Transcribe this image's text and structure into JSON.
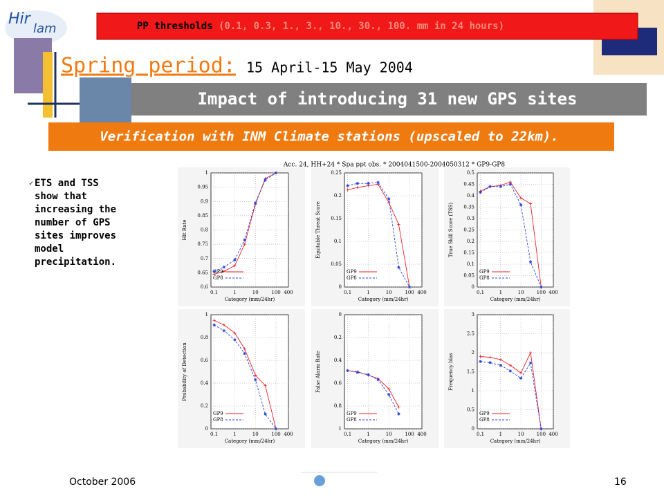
{
  "header": {
    "logo_top": "Hir",
    "logo_bottom": "lam",
    "threshold_label": "PP thresholds",
    "threshold_values": "(0.1, 0.3, 1., 3., 10., 30., 100. mm in 24 hours)",
    "period_label": "Spring period: ",
    "period_dates": "15 April-15 May 2004",
    "banner": "Impact of introducing 31 new GPS sites",
    "subbanner": "Verification with INM Climate stations (upscaled to 22km)."
  },
  "bullet": "ETS and TSS show that increasing the number of GPS sites improves model precipitation.",
  "figure_title": "Acc. 24, HH+24 * Spa ppt obs. * 2004041500-2004050312 * GP9-GP8",
  "footer": {
    "date": "October 2006",
    "page": "16"
  },
  "chart_data": [
    {
      "type": "line",
      "ylabel": "Hit Rate",
      "xlabel": "Category (mm/24hr)",
      "xscale": "log",
      "grid": true,
      "legend": "lower left",
      "x": [
        0.1,
        0.3,
        1,
        3,
        10,
        30,
        100
      ],
      "xlim": [
        0.07,
        400
      ],
      "xticks": [
        0.1,
        1,
        10,
        100,
        400
      ],
      "ylim": [
        0.6,
        1
      ],
      "yticks": [
        0.6,
        0.65,
        0.7,
        0.75,
        0.8,
        0.85,
        0.9,
        0.95,
        1
      ],
      "series": [
        {
          "name": "GP9",
          "color": "#e8202a",
          "values": [
            0.645,
            0.655,
            0.675,
            0.75,
            0.89,
            0.98,
            1.0
          ]
        },
        {
          "name": "GP8",
          "color": "#2040e0",
          "values": [
            0.655,
            0.67,
            0.695,
            0.765,
            0.895,
            0.975,
            1.0
          ]
        }
      ]
    },
    {
      "type": "line",
      "ylabel": "Equitable Threat Score",
      "xlabel": "Category (mm/24hr)",
      "xscale": "log",
      "grid": true,
      "legend": "lower left",
      "x": [
        0.1,
        0.3,
        1,
        3,
        10,
        30,
        100
      ],
      "xlim": [
        0.07,
        400
      ],
      "xticks": [
        0.1,
        1,
        10,
        100,
        400
      ],
      "ylim": [
        0,
        0.25
      ],
      "yticks": [
        0,
        0.05,
        0.1,
        0.15,
        0.2,
        0.25
      ],
      "series": [
        {
          "name": "GP9",
          "color": "#e8202a",
          "values": [
            0.213,
            0.218,
            0.222,
            0.225,
            0.185,
            0.137,
            0.0
          ]
        },
        {
          "name": "GP8",
          "color": "#2040e0",
          "values": [
            0.222,
            0.227,
            0.227,
            0.229,
            0.193,
            0.043,
            0.0
          ]
        }
      ]
    },
    {
      "type": "line",
      "ylabel": "True Skill Score (TSS)",
      "xlabel": "Category (mm/24hr)",
      "xscale": "log",
      "grid": true,
      "legend": "lower left",
      "x": [
        0.1,
        0.3,
        1,
        3,
        10,
        30,
        100
      ],
      "xlim": [
        0.07,
        400
      ],
      "xticks": [
        0.1,
        1,
        10,
        100,
        400
      ],
      "ylim": [
        0,
        0.5
      ],
      "yticks": [
        0,
        0.05,
        0.1,
        0.15,
        0.2,
        0.25,
        0.3,
        0.35,
        0.4,
        0.45,
        0.5
      ],
      "series": [
        {
          "name": "GP9",
          "color": "#e8202a",
          "values": [
            0.42,
            0.44,
            0.445,
            0.46,
            0.39,
            0.365,
            0.0
          ]
        },
        {
          "name": "GP8",
          "color": "#2040e0",
          "values": [
            0.415,
            0.44,
            0.44,
            0.45,
            0.36,
            0.11,
            0.0
          ]
        }
      ]
    },
    {
      "type": "line",
      "ylabel": "Probability of Detection",
      "xlabel": "Category (mm/24hr)",
      "xscale": "log",
      "grid": true,
      "legend": "lower left",
      "x": [
        0.1,
        0.3,
        1,
        3,
        10,
        30,
        100
      ],
      "xlim": [
        0.07,
        400
      ],
      "xticks": [
        0.1,
        1,
        10,
        100,
        400
      ],
      "ylim": [
        0,
        1
      ],
      "yticks": [
        0,
        0.2,
        0.4,
        0.6,
        0.8,
        1
      ],
      "series": [
        {
          "name": "GP9",
          "color": "#e8202a",
          "values": [
            0.95,
            0.91,
            0.84,
            0.7,
            0.47,
            0.38,
            0.0
          ]
        },
        {
          "name": "GP8",
          "color": "#2040e0",
          "values": [
            0.91,
            0.86,
            0.78,
            0.66,
            0.43,
            0.13,
            0.0
          ]
        }
      ]
    },
    {
      "type": "line",
      "ylabel": "False Alarm Rate",
      "xlabel": "Category (mm/24hr)",
      "xscale": "log",
      "grid": true,
      "legend": "lower left",
      "x": [
        0.1,
        0.3,
        1,
        3,
        10,
        30,
        100
      ],
      "xlim": [
        0.07,
        400
      ],
      "xticks": [
        0.1,
        1,
        10,
        100,
        400
      ],
      "ylim": [
        1,
        0
      ],
      "yticks": [
        0,
        0.2,
        0.4,
        0.6,
        0.8,
        1
      ],
      "series": [
        {
          "name": "GP9",
          "color": "#e8202a",
          "values": [
            0.49,
            0.5,
            0.53,
            0.56,
            0.65,
            0.81,
            null
          ]
        },
        {
          "name": "GP8",
          "color": "#2040e0",
          "values": [
            0.49,
            0.505,
            0.525,
            0.57,
            0.7,
            0.87,
            null
          ]
        }
      ]
    },
    {
      "type": "line",
      "ylabel": "Frequency bias",
      "xlabel": "Category (mm/24hr)",
      "xscale": "log",
      "grid": true,
      "legend": "lower left",
      "x": [
        0.1,
        0.3,
        1,
        3,
        10,
        30,
        100
      ],
      "xlim": [
        0.07,
        400
      ],
      "xticks": [
        0.1,
        1,
        10,
        100,
        400
      ],
      "ylim": [
        0,
        3
      ],
      "yticks": [
        0,
        0.5,
        1,
        1.5,
        2,
        2.5,
        3
      ],
      "series": [
        {
          "name": "GP9",
          "color": "#e8202a",
          "values": [
            1.9,
            1.88,
            1.82,
            1.67,
            1.47,
            2.0,
            0.0
          ]
        },
        {
          "name": "GP8",
          "color": "#2040e0",
          "values": [
            1.77,
            1.74,
            1.67,
            1.52,
            1.33,
            1.73,
            0.0
          ]
        }
      ]
    }
  ]
}
